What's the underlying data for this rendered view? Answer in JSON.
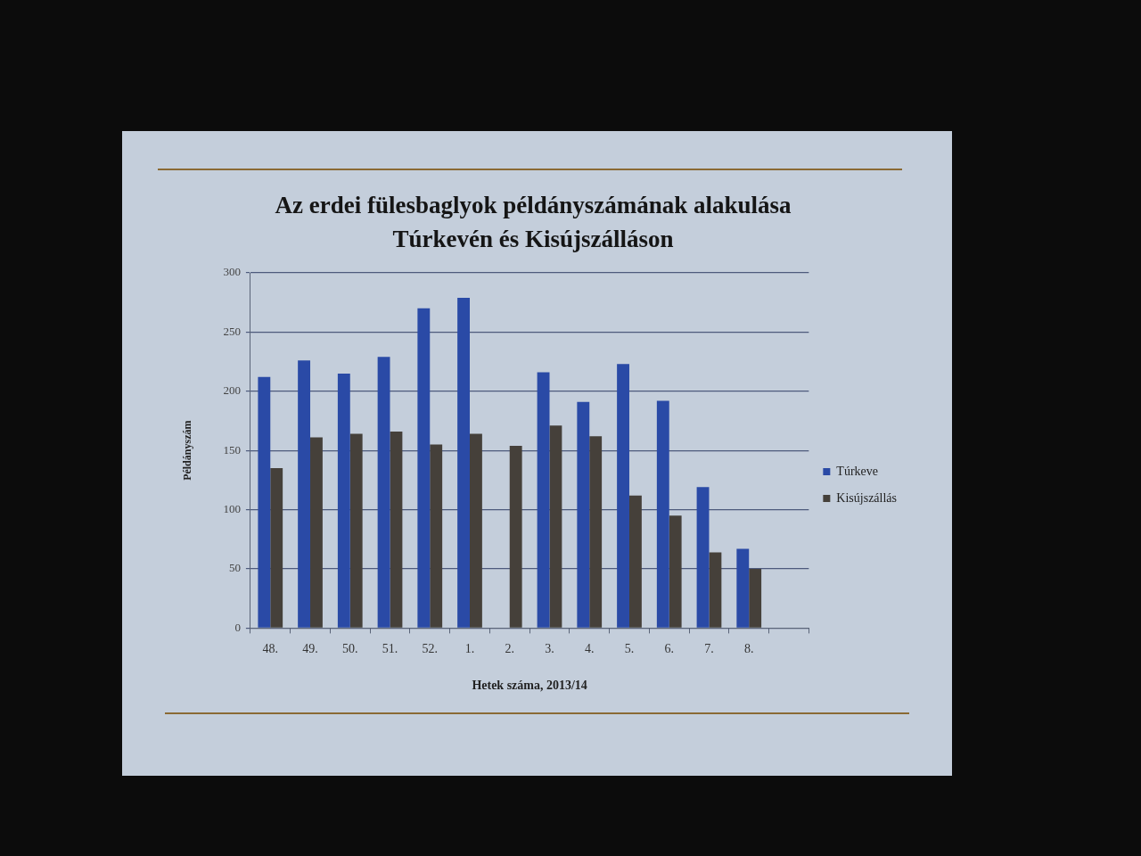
{
  "chart_data": {
    "type": "bar",
    "title": "Az erdei fülesbaglyok példányszámának alakulása Túrkevén és Kisújszálláson",
    "xlabel": "Hetek száma, 2013/14",
    "ylabel": "Példányszám",
    "categories": [
      "48.",
      "49.",
      "50.",
      "51.",
      "52.",
      "1.",
      "2.",
      "3.",
      "4.",
      "5.",
      "6.",
      "7.",
      "8.",
      null
    ],
    "series": [
      {
        "name": "Túrkeve",
        "color": "#2a4aa6",
        "values": [
          212,
          226,
          215,
          229,
          270,
          279,
          null,
          216,
          191,
          223,
          192,
          119,
          67,
          null
        ]
      },
      {
        "name": "Kisújszállás",
        "color": "#45403a",
        "values": [
          135,
          161,
          164,
          166,
          155,
          164,
          154,
          171,
          162,
          112,
          95,
          64,
          50,
          null
        ]
      }
    ],
    "ylim": [
      0,
      300
    ],
    "yticks": [
      0,
      50,
      100,
      150,
      200,
      250,
      300
    ],
    "grid": "y",
    "legend": "right"
  }
}
